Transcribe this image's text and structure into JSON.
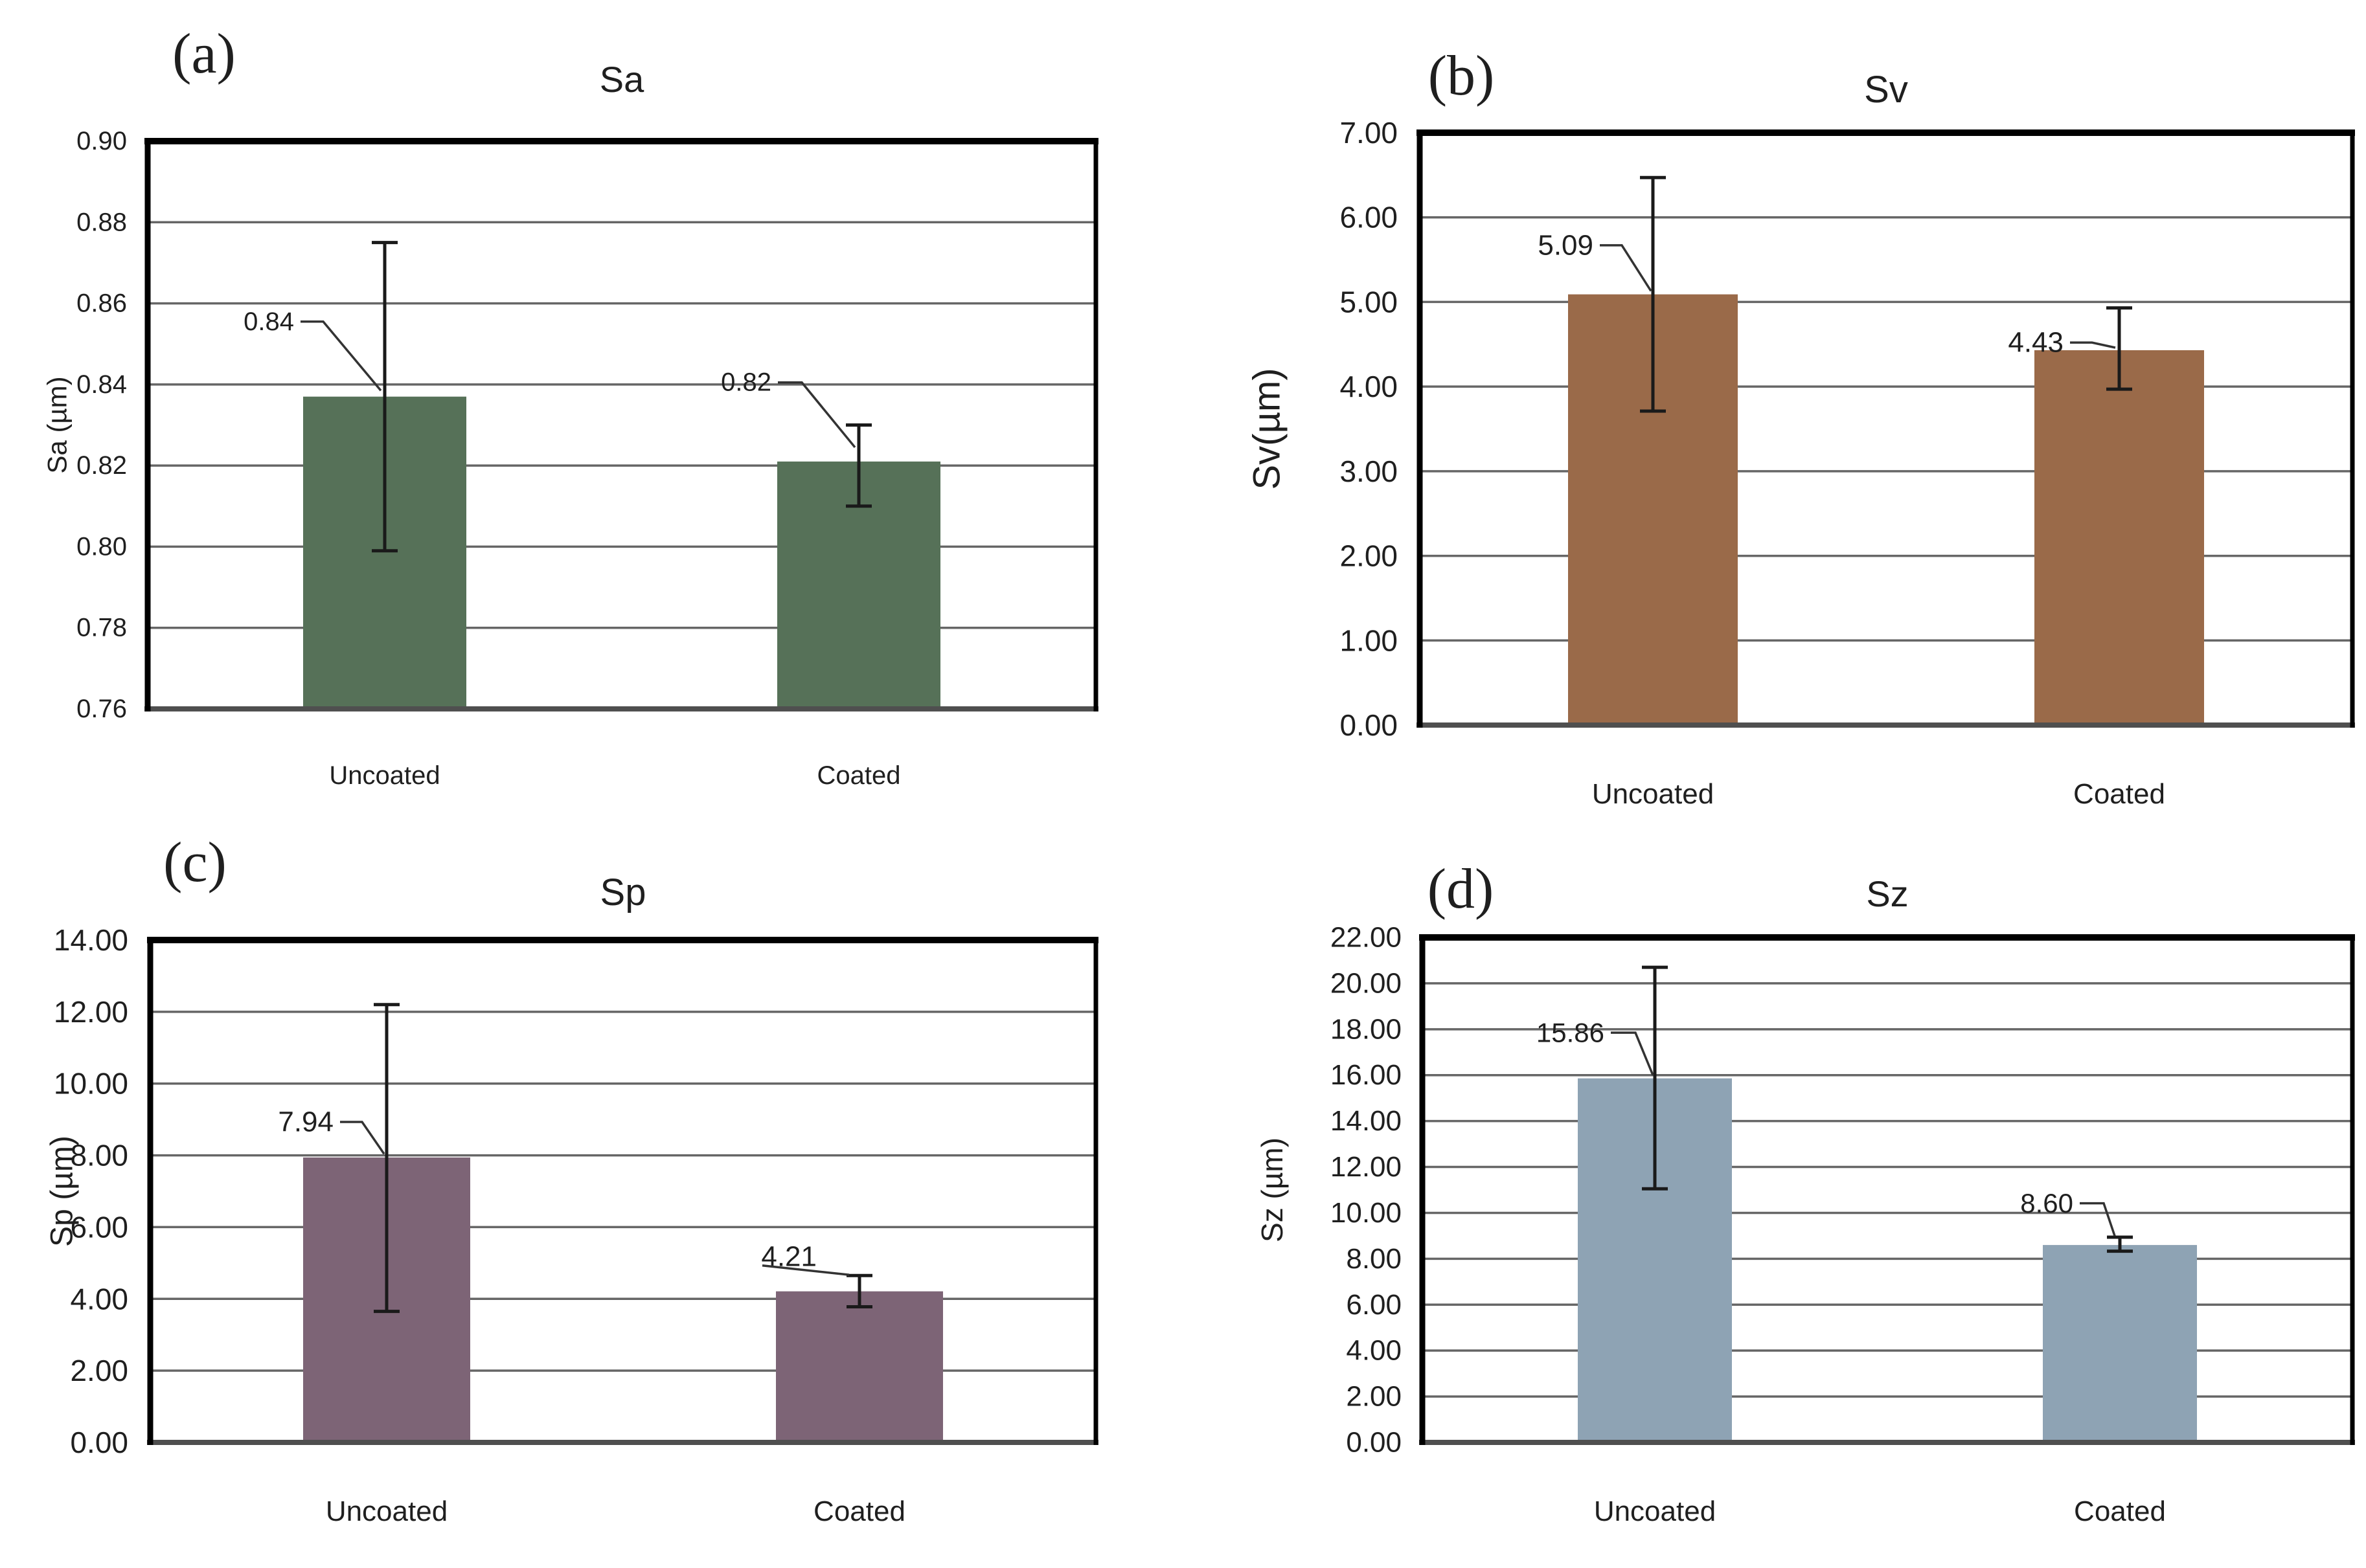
{
  "figure": {
    "background": "#ffffff",
    "description_layout": "2x2 grid of bar charts",
    "grid_color": "#666666",
    "frame_color": "#000000",
    "baseline_color": "#4f4f4f",
    "error_bar_color": "#1a1a1a"
  },
  "chart_data": [
    {
      "id": "a",
      "type": "bar",
      "panel_label": "(a)",
      "title": "Sa",
      "xlabel": "",
      "ylabel": "Sa (µm)",
      "categories": [
        "Uncoated",
        "Coated"
      ],
      "values": [
        0.837,
        0.821
      ],
      "value_labels": [
        "0.84",
        "0.82"
      ],
      "error_low": [
        0.799,
        0.81
      ],
      "error_high": [
        0.875,
        0.83
      ],
      "ylim": [
        0.76,
        0.9
      ],
      "ystep": 0.02,
      "ytick_labels": [
        "0.76",
        "0.78",
        "0.80",
        "0.82",
        "0.84",
        "0.86",
        "0.88",
        "0.90"
      ],
      "bar_color": "#567158",
      "grid": true,
      "legend": "none"
    },
    {
      "id": "b",
      "type": "bar",
      "panel_label": "(b)",
      "title": "Sv",
      "xlabel": "",
      "ylabel": "Sv(µm)",
      "categories": [
        "Uncoated",
        "Coated"
      ],
      "values": [
        5.09,
        4.43
      ],
      "value_labels": [
        "5.09",
        "4.43"
      ],
      "error_low": [
        3.71,
        3.97
      ],
      "error_high": [
        6.47,
        4.93
      ],
      "ylim": [
        0.0,
        7.0
      ],
      "ystep": 1.0,
      "ytick_labels": [
        "0.00",
        "1.00",
        "2.00",
        "3.00",
        "4.00",
        "5.00",
        "6.00",
        "7.00"
      ],
      "bar_color": "#9a6a49",
      "grid": true,
      "legend": "none"
    },
    {
      "id": "c",
      "type": "bar",
      "panel_label": "(c)",
      "title": "Sp",
      "xlabel": "",
      "ylabel": "Sp (µm)",
      "categories": [
        "Uncoated",
        "Coated"
      ],
      "values": [
        7.94,
        4.21
      ],
      "value_labels": [
        "7.94",
        "4.21"
      ],
      "error_low": [
        3.65,
        3.78
      ],
      "error_high": [
        12.2,
        4.65
      ],
      "ylim": [
        0.0,
        14.0
      ],
      "ystep": 2.0,
      "ytick_labels": [
        "0.00",
        "2.00",
        "4.00",
        "6.00",
        "8.00",
        "10.00",
        "12.00",
        "14.00"
      ],
      "bar_color": "#7d6476",
      "grid": true,
      "legend": "none"
    },
    {
      "id": "d",
      "type": "bar",
      "panel_label": "(d)",
      "title": "Sz",
      "xlabel": "",
      "ylabel": "Sz (µm)",
      "categories": [
        "Uncoated",
        "Coated"
      ],
      "values": [
        15.86,
        8.6
      ],
      "value_labels": [
        "15.86",
        "8.60"
      ],
      "error_low": [
        11.05,
        8.33
      ],
      "error_high": [
        20.7,
        8.94
      ],
      "ylim": [
        0.0,
        22.0
      ],
      "ystep": 2.0,
      "ytick_labels": [
        "0.00",
        "2.00",
        "4.00",
        "6.00",
        "8.00",
        "10.00",
        "12.00",
        "14.00",
        "16.00",
        "18.00",
        "20.00",
        "22.00"
      ],
      "bar_color": "#8ea3b4",
      "grid": true,
      "legend": "none"
    }
  ]
}
